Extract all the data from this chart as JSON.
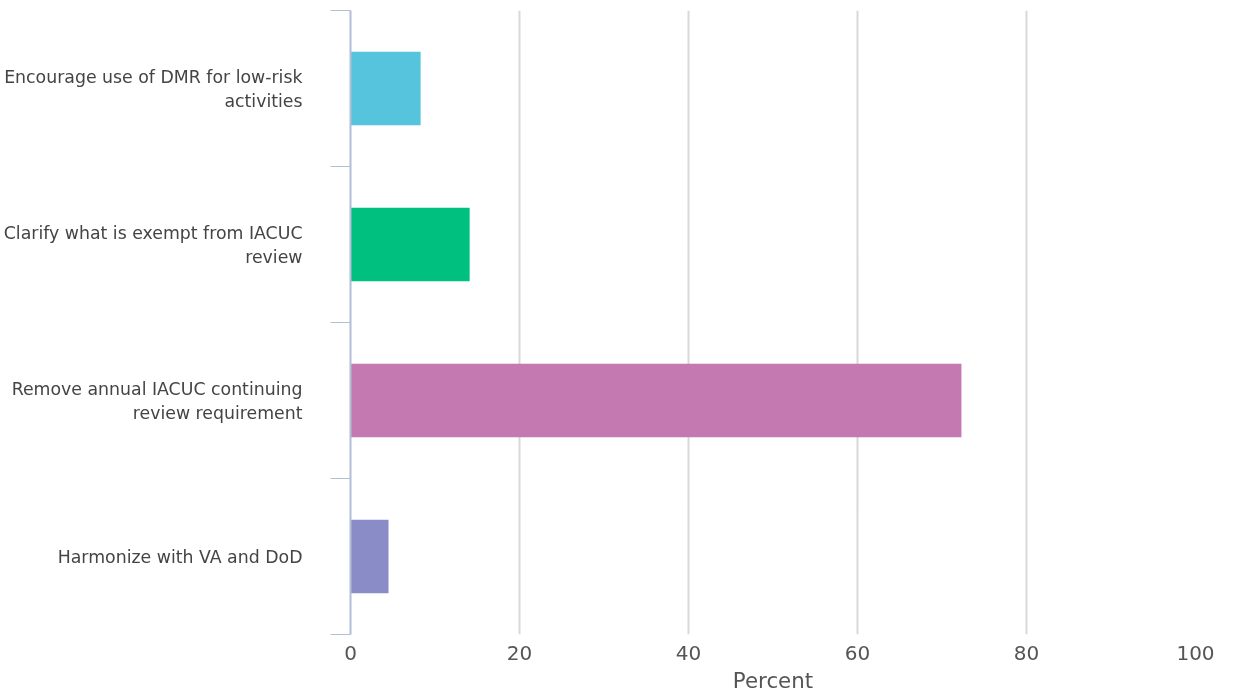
{
  "chart_data": {
    "type": "bar",
    "orientation": "horizontal",
    "categories": [
      "Encourage use of DMR for low-risk activities",
      "Clarify what is exempt from IACUC review",
      "Remove annual IACUC continuing review requirement",
      "Harmonize with VA and DoD"
    ],
    "values": [
      8.3,
      14.1,
      72.3,
      4.5
    ],
    "colors": [
      "#56c4dd",
      "#00c080",
      "#c47ab1",
      "#8a8cc8"
    ],
    "xlabel": "Percent",
    "xlim": [
      0,
      100
    ],
    "xticks": [
      0,
      20,
      40,
      60,
      80,
      100
    ],
    "grid": "x"
  }
}
